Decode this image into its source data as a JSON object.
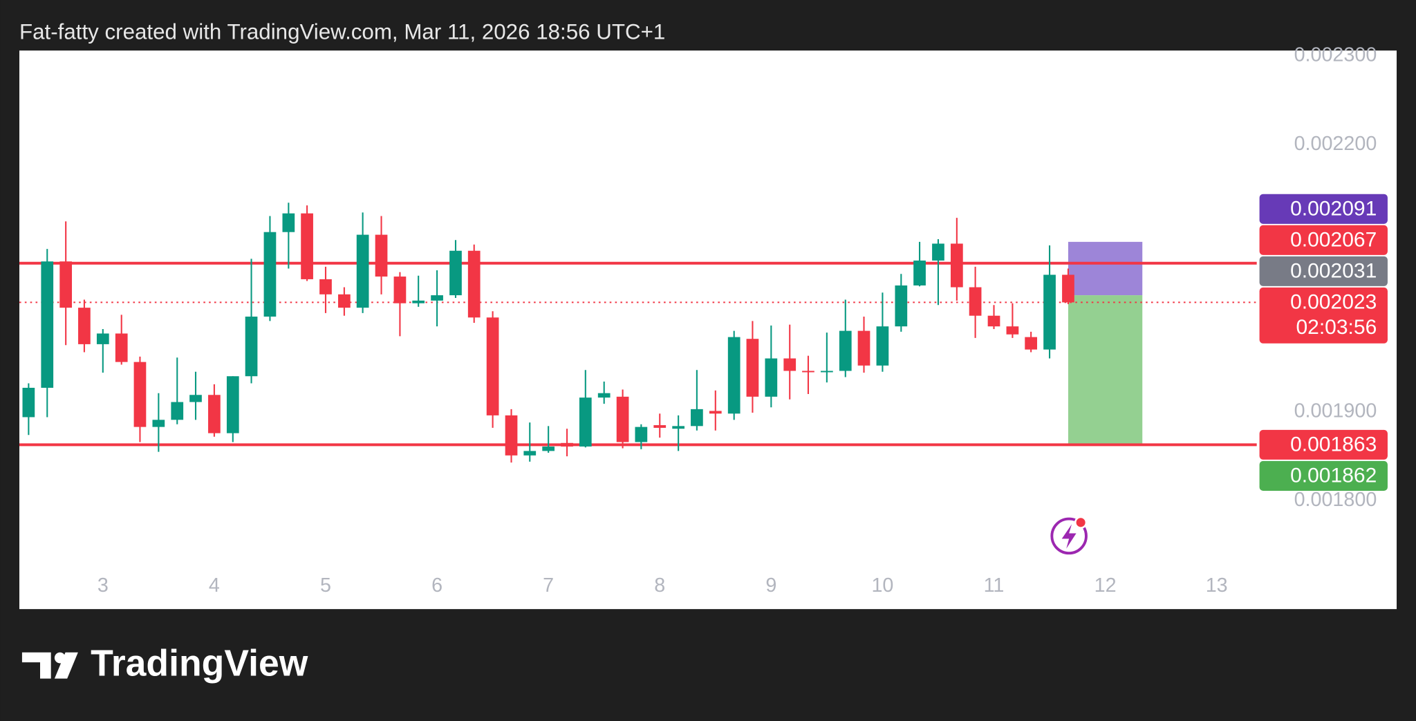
{
  "chart_data": {
    "type": "candlestick",
    "title": "Fat-fatty created with TradingView.com, Mar 11, 2026 18:56 UTC+1",
    "brand": "TradingView",
    "x": [
      2.333,
      2.5,
      2.667,
      2.833,
      3,
      3.167,
      3.333,
      3.5,
      3.667,
      3.833,
      4,
      4.167,
      4.333,
      4.5,
      4.667,
      4.833,
      5,
      5.167,
      5.333,
      5.5,
      5.667,
      5.833,
      6,
      6.167,
      6.333,
      6.5,
      6.667,
      6.833,
      7,
      7.167,
      7.333,
      7.5,
      7.667,
      7.833,
      8,
      8.167,
      8.333,
      8.5,
      8.667,
      8.833,
      9,
      9.167,
      9.333,
      9.5,
      9.667,
      9.833,
      10,
      10.167,
      10.333,
      10.5,
      10.667,
      10.833,
      11,
      11.167,
      11.333,
      11.5,
      11.667
    ],
    "open": [
      0.001894,
      0.001927,
      0.002069,
      0.002017,
      0.001976,
      0.001988,
      0.001956,
      0.001883,
      0.001891,
      0.001911,
      0.001919,
      0.001876,
      0.00194,
      0.002007,
      0.002102,
      0.002123,
      0.002049,
      0.002032,
      0.002017,
      0.002099,
      0.002052,
      0.002022,
      0.002025,
      0.002031,
      0.002081,
      0.002006,
      0.001896,
      0.001851,
      0.001856,
      0.001865,
      0.001861,
      0.001916,
      0.001917,
      0.001866,
      0.001885,
      0.001881,
      0.001884,
      0.001901,
      0.001898,
      0.001982,
      0.001917,
      0.00196,
      0.001946,
      0.001945,
      0.001946,
      0.001991,
      0.001952,
      0.001996,
      0.002042,
      0.00207,
      0.002089,
      0.00204,
      0.002008,
      0.001996,
      0.001984,
      0.00197,
      0.002054
    ],
    "high": [
      0.001932,
      0.002083,
      0.002114,
      0.002026,
      0.001993,
      0.002009,
      0.001962,
      0.001921,
      0.001961,
      0.001945,
      0.001931,
      0.00194,
      0.002072,
      0.00212,
      0.002135,
      0.002132,
      0.002063,
      0.00204,
      0.002124,
      0.00212,
      0.002057,
      0.002053,
      0.002059,
      0.002093,
      0.002088,
      0.002013,
      0.001903,
      0.001888,
      0.001884,
      0.001881,
      0.001947,
      0.001934,
      0.001925,
      0.001886,
      0.001898,
      0.001896,
      0.001947,
      0.001924,
      0.001991,
      0.002002,
      0.001997,
      0.001998,
      0.001963,
      0.001989,
      0.002026,
      0.002007,
      0.002034,
      0.002055,
      0.002091,
      0.002094,
      0.002118,
      0.002063,
      0.00202,
      0.002022,
      0.00199,
      0.002087,
      0.002061
    ],
    "low": [
      0.001874,
      0.001894,
      0.001975,
      0.001967,
      0.001944,
      0.001953,
      0.001866,
      0.001855,
      0.001886,
      0.001891,
      0.001872,
      0.001866,
      0.001932,
      0.002002,
      0.002061,
      0.002047,
      0.002011,
      0.002008,
      0.002011,
      0.002032,
      0.001985,
      0.002018,
      0.001996,
      0.002028,
      0.002,
      0.001882,
      0.001843,
      0.001844,
      0.001854,
      0.00185,
      0.00186,
      0.001909,
      0.001859,
      0.001858,
      0.001871,
      0.001856,
      0.001879,
      0.001879,
      0.001891,
      0.001899,
      0.001905,
      0.001914,
      0.00192,
      0.001933,
      0.001939,
      0.001944,
      0.001945,
      0.00199,
      0.002041,
      0.00202,
      0.002025,
      0.001983,
      0.001993,
      0.001983,
      0.001967,
      0.00196,
      0.002021
    ],
    "close": [
      0.001927,
      0.002069,
      0.002017,
      0.001976,
      0.001988,
      0.001956,
      0.001883,
      0.001891,
      0.001911,
      0.001919,
      0.001876,
      0.00194,
      0.002007,
      0.002102,
      0.002123,
      0.002049,
      0.002032,
      0.002017,
      0.002099,
      0.002052,
      0.002022,
      0.002025,
      0.002031,
      0.002081,
      0.002006,
      0.001896,
      0.001851,
      0.001856,
      0.001861,
      0.001861,
      0.001916,
      0.001921,
      0.001866,
      0.001883,
      0.001882,
      0.001884,
      0.001903,
      0.001898,
      0.001984,
      0.001917,
      0.00196,
      0.001946,
      0.001945,
      0.001946,
      0.001991,
      0.001952,
      0.001996,
      0.002042,
      0.00207,
      0.002089,
      0.00204,
      0.002008,
      0.001996,
      0.001987,
      0.00197,
      0.002054,
      0.002023
    ],
    "up_color": "#089981",
    "down_color": "#f23645",
    "xlim": [
      2.25,
      13.36
    ],
    "xticks": [
      3,
      4,
      5,
      6,
      7,
      8,
      9,
      10,
      11,
      12,
      13
    ],
    "ylim": [
      0.001729,
      0.002306
    ],
    "yticks": [
      {
        "value": 0.0023,
        "label": "0.002300"
      },
      {
        "value": 0.0022,
        "label": "0.002200"
      },
      {
        "value": 0.0019,
        "label": "0.001900"
      },
      {
        "value": 0.0018,
        "label": "0.001800"
      }
    ],
    "hlines": [
      {
        "value": 0.002067,
        "color": "#f23645"
      },
      {
        "value": 0.001863,
        "color": "#f23645"
      }
    ],
    "last_price": {
      "value": 0.002023,
      "countdown": "02:03:56",
      "color": "#f23645"
    },
    "position": {
      "start": 11.667,
      "end": 12.333,
      "stop": 0.002091,
      "entry": 0.002031,
      "target": 0.001862,
      "stop_color": "#9d85d8",
      "target_color": "#94d091"
    },
    "price_labels": [
      {
        "value": 0.002091,
        "color": "#673ab7"
      },
      {
        "value": 0.002067,
        "color": "#f23645"
      },
      {
        "value": 0.002031,
        "color": "#787b86"
      },
      {
        "value": 0.001863,
        "color": "#f23645"
      },
      {
        "value": 0.001862,
        "color": "#4caf50"
      }
    ]
  }
}
